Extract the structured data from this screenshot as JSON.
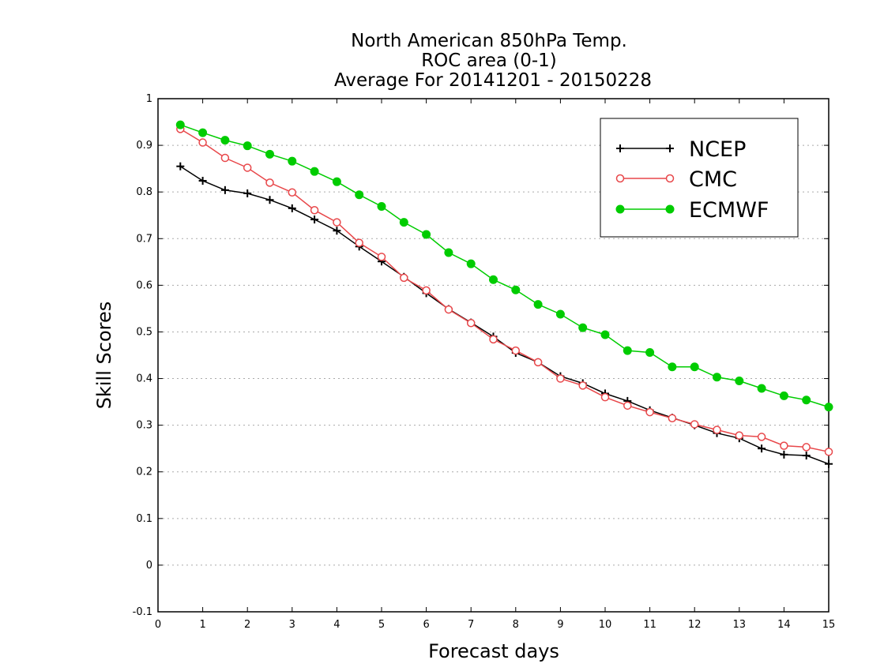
{
  "chart_data": {
    "type": "line",
    "title_lines": [
      "North American 850hPa Temp.",
      "ROC area (0-1)",
      "Average For 20141201 - 20150228"
    ],
    "xlabel": "Forecast days",
    "ylabel": "Skill Scores",
    "xlim": [
      0,
      15
    ],
    "ylim": [
      -0.1,
      1
    ],
    "x_ticks": [
      "0",
      "1",
      "2",
      "3",
      "4",
      "5",
      "6",
      "7",
      "8",
      "9",
      "10",
      "11",
      "12",
      "13",
      "14",
      "15"
    ],
    "y_ticks": [
      "-0.1",
      "0",
      "0.1",
      "0.2",
      "0.3",
      "0.4",
      "0.5",
      "0.6",
      "0.7",
      "0.8",
      "0.9",
      "1"
    ],
    "grid": true,
    "legend_position": "top-right",
    "x": [
      0.5,
      1,
      1.5,
      2,
      2.5,
      3,
      3.5,
      4,
      4.5,
      5,
      5.5,
      6,
      6.5,
      7,
      7.5,
      8,
      8.5,
      9,
      9.5,
      10,
      10.5,
      11,
      11.5,
      12,
      12.5,
      13,
      13.5,
      14,
      14.5,
      15
    ],
    "series": [
      {
        "name": "NCEP",
        "color": "#000000",
        "marker": "plus",
        "values": [
          0.855,
          0.824,
          0.804,
          0.797,
          0.783,
          0.765,
          0.741,
          0.717,
          0.683,
          0.651,
          0.618,
          0.583,
          0.549,
          0.52,
          0.49,
          0.455,
          0.435,
          0.405,
          0.39,
          0.368,
          0.352,
          0.332,
          0.316,
          0.3,
          0.283,
          0.272,
          0.25,
          0.237,
          0.235,
          0.217
        ]
      },
      {
        "name": "CMC",
        "color": "#e8474a",
        "marker": "circle-open",
        "values": [
          0.935,
          0.906,
          0.873,
          0.852,
          0.82,
          0.799,
          0.761,
          0.735,
          0.691,
          0.661,
          0.616,
          0.589,
          0.548,
          0.519,
          0.484,
          0.46,
          0.435,
          0.4,
          0.385,
          0.36,
          0.342,
          0.328,
          0.315,
          0.302,
          0.29,
          0.278,
          0.275,
          0.256,
          0.253,
          0.243
        ]
      },
      {
        "name": "ECMWF",
        "color": "#00cc00",
        "marker": "circle-filled",
        "values": [
          0.944,
          0.927,
          0.911,
          0.899,
          0.881,
          0.866,
          0.844,
          0.822,
          0.794,
          0.769,
          0.735,
          0.709,
          0.67,
          0.646,
          0.612,
          0.59,
          0.559,
          0.538,
          0.509,
          0.494,
          0.46,
          0.456,
          0.425,
          0.425,
          0.403,
          0.395,
          0.379,
          0.363,
          0.354,
          0.339
        ]
      }
    ]
  }
}
